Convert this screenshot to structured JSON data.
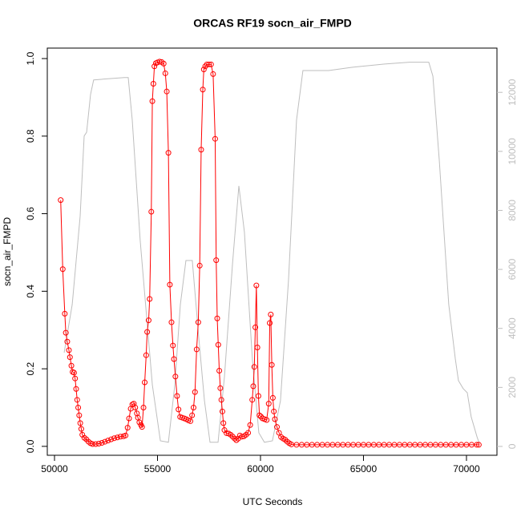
{
  "chart_data": {
    "type": "line",
    "title": "ORCAS RF19 socn_air_FMPD",
    "xlabel": "UTC Seconds",
    "ylabel": "socn_air_FMPD",
    "xlim": [
      49650,
      71480
    ],
    "xticks": [
      50000,
      55000,
      60000,
      65000,
      70000
    ],
    "ylim": [
      -0.023,
      1.027
    ],
    "yticks": [
      {
        "value": 0,
        "label": "0.0"
      },
      0.2,
      0.4,
      0.6,
      0.8,
      {
        "value": 1,
        "label": "1.0"
      }
    ],
    "y2lim": [
      -300,
      13500
    ],
    "y2ticks": [
      0,
      2000,
      4000,
      6000,
      8000,
      10000,
      12000
    ],
    "series": [
      {
        "color": "#bebebe",
        "axis": "y2",
        "markers": false,
        "x": [
          50470,
          50860,
          51245,
          51440,
          51560,
          51750,
          51900,
          52410,
          53390,
          53580,
          53775,
          54160,
          54750,
          55140,
          55530,
          55840,
          56110,
          56380,
          56690,
          57000,
          57280,
          57550,
          57940,
          58250,
          58640,
          58950,
          59220,
          59610,
          59920,
          60190,
          60580,
          60970,
          61360,
          61750,
          62060,
          63310,
          64470,
          66030,
          67200,
          68170,
          68370,
          68680,
          69140,
          69460,
          69610,
          69840,
          70040,
          70230,
          70510,
          70620
        ],
        "values": [
          3180,
          4810,
          7800,
          10520,
          10650,
          11930,
          12420,
          12450,
          12500,
          12500,
          11060,
          6980,
          2090,
          190,
          140,
          2090,
          4810,
          6300,
          6300,
          3720,
          1550,
          140,
          140,
          2360,
          6170,
          8830,
          7260,
          2910,
          460,
          140,
          190,
          1550,
          5630,
          11060,
          12740,
          12740,
          12850,
          12960,
          13020,
          13020,
          12550,
          9700,
          4810,
          2960,
          2230,
          1960,
          1820,
          1000,
          330,
          110
        ]
      },
      {
        "color": "#ff0000",
        "axis": "y",
        "markers": true,
        "x": [
          50300,
          50400,
          50500,
          50550,
          50620,
          50700,
          50750,
          50820,
          50880,
          50950,
          51000,
          51050,
          51100,
          51150,
          51200,
          51250,
          51300,
          51350,
          51450,
          51550,
          51650,
          51750,
          51850,
          52000,
          52150,
          52300,
          52450,
          52600,
          52750,
          52900,
          53050,
          53200,
          53350,
          53450,
          53550,
          53620,
          53700,
          53780,
          53850,
          53920,
          54000,
          54050,
          54120,
          54200,
          54250,
          54320,
          54380,
          54450,
          54500,
          54570,
          54620,
          54700,
          54750,
          54800,
          54850,
          54920,
          55000,
          55100,
          55200,
          55300,
          55380,
          55450,
          55530,
          55600,
          55680,
          55750,
          55800,
          55870,
          55950,
          56020,
          56100,
          56200,
          56300,
          56400,
          56500,
          56600,
          56680,
          56750,
          56820,
          56900,
          56980,
          57050,
          57120,
          57200,
          57250,
          57320,
          57400,
          57500,
          57600,
          57700,
          57800,
          57850,
          57900,
          57950,
          58000,
          58050,
          58100,
          58150,
          58200,
          58250,
          58350,
          58450,
          58550,
          58650,
          58750,
          58830,
          58920,
          59000,
          59100,
          59200,
          59300,
          59400,
          59500,
          59600,
          59650,
          59700,
          59750,
          59800,
          59850,
          59900,
          59950,
          60020,
          60100,
          60200,
          60300,
          60400,
          60450,
          60500,
          60550,
          60600,
          60650,
          60700,
          60800,
          60900,
          61000,
          61100,
          61200,
          61300,
          61400,
          61500,
          61750,
          62000,
          62250,
          62500,
          62750,
          63000,
          63250,
          63500,
          63750,
          64000,
          64250,
          64500,
          64750,
          65000,
          65250,
          65500,
          65750,
          66000,
          66250,
          66500,
          66750,
          67000,
          67250,
          67500,
          67750,
          68000,
          68250,
          68500,
          68750,
          69000,
          69250,
          69500,
          69750,
          70000,
          70250,
          70500,
          70600
        ],
        "values": [
          0.635,
          0.457,
          0.342,
          0.293,
          0.27,
          0.248,
          0.23,
          0.208,
          0.192,
          0.19,
          0.175,
          0.148,
          0.12,
          0.1,
          0.08,
          0.06,
          0.045,
          0.03,
          0.022,
          0.018,
          0.012,
          0.008,
          0.006,
          0.006,
          0.007,
          0.009,
          0.012,
          0.015,
          0.018,
          0.021,
          0.023,
          0.025,
          0.026,
          0.028,
          0.048,
          0.072,
          0.097,
          0.108,
          0.11,
          0.1,
          0.085,
          0.074,
          0.062,
          0.055,
          0.05,
          0.1,
          0.165,
          0.235,
          0.295,
          0.325,
          0.38,
          0.605,
          0.89,
          0.935,
          0.98,
          0.988,
          0.99,
          0.992,
          0.991,
          0.987,
          0.962,
          0.915,
          0.757,
          0.417,
          0.32,
          0.26,
          0.225,
          0.18,
          0.13,
          0.095,
          0.076,
          0.074,
          0.072,
          0.07,
          0.067,
          0.065,
          0.08,
          0.1,
          0.14,
          0.25,
          0.32,
          0.466,
          0.765,
          0.92,
          0.972,
          0.98,
          0.985,
          0.985,
          0.985,
          0.96,
          0.793,
          0.48,
          0.33,
          0.262,
          0.195,
          0.15,
          0.12,
          0.09,
          0.06,
          0.042,
          0.034,
          0.033,
          0.03,
          0.025,
          0.02,
          0.016,
          0.02,
          0.028,
          0.025,
          0.026,
          0.03,
          0.035,
          0.055,
          0.12,
          0.155,
          0.205,
          0.307,
          0.415,
          0.255,
          0.13,
          0.08,
          0.077,
          0.072,
          0.07,
          0.068,
          0.11,
          0.318,
          0.34,
          0.21,
          0.125,
          0.09,
          0.07,
          0.05,
          0.035,
          0.024,
          0.02,
          0.017,
          0.012,
          0.008,
          0.005,
          0.004,
          0.004,
          0.004,
          0.004,
          0.004,
          0.004,
          0.004,
          0.004,
          0.004,
          0.004,
          0.004,
          0.004,
          0.004,
          0.004,
          0.004,
          0.004,
          0.004,
          0.004,
          0.004,
          0.004,
          0.004,
          0.004,
          0.004,
          0.004,
          0.004,
          0.004,
          0.004,
          0.004,
          0.004,
          0.004,
          0.004,
          0.004,
          0.004,
          0.004,
          0.004,
          0.004,
          0.004
        ]
      }
    ]
  }
}
